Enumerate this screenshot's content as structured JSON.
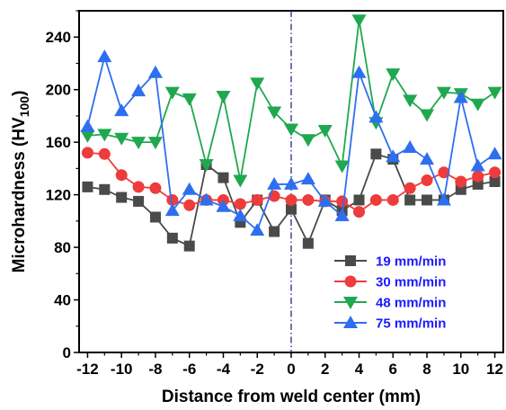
{
  "chart_data": {
    "type": "line",
    "xlabel": "Distance from weld center (mm)",
    "ylabel_main": "Microhardness (HV",
    "ylabel_sub": "100",
    "ylabel_end": ")",
    "xlim": [
      -12.5,
      12.5
    ],
    "ylim": [
      0,
      260
    ],
    "xticks": [
      -12,
      -10,
      -8,
      -6,
      -4,
      -2,
      0,
      2,
      4,
      6,
      8,
      10,
      12
    ],
    "xtick_labels": [
      "-12",
      "-10",
      "-8",
      "-6",
      "-4",
      "-2",
      "0",
      "2",
      "4",
      "6",
      "8",
      "10",
      "12"
    ],
    "yticks": [
      0,
      40,
      80,
      120,
      160,
      200,
      240
    ],
    "ytick_labels": [
      "0",
      "40",
      "80",
      "120",
      "160",
      "200",
      "240"
    ],
    "grid": false,
    "legend_position": "bottom-right",
    "center_line_x": 0,
    "x": [
      -12,
      -11,
      -10,
      -9,
      -8,
      -7,
      -6,
      -5,
      -4,
      -3,
      -2,
      -1,
      0,
      1,
      2,
      3,
      4,
      5,
      6,
      7,
      8,
      9,
      10,
      11,
      12
    ],
    "series": [
      {
        "name": "19 mm/min",
        "color": "#4a4a4a",
        "marker": "square",
        "values": [
          126,
          124,
          118,
          115,
          103,
          87,
          81,
          143,
          133,
          99,
          116,
          92,
          109,
          83,
          116,
          108,
          116,
          151,
          147,
          116,
          116,
          116,
          124,
          128,
          130
        ]
      },
      {
        "name": "30 mm/min",
        "color": "#ee3b3b",
        "marker": "circle",
        "values": [
          152,
          151,
          135,
          126,
          125,
          116,
          112,
          116,
          116,
          113,
          116,
          119,
          116,
          116,
          115,
          115,
          107,
          116,
          116,
          125,
          131,
          137,
          130,
          134,
          137
        ]
      },
      {
        "name": "48 mm/min",
        "color": "#1fa84f",
        "marker": "triangle-down",
        "values": [
          165,
          166,
          163,
          160,
          160,
          198,
          193,
          143,
          195,
          131,
          205,
          183,
          170,
          162,
          169,
          142,
          253,
          175,
          212,
          192,
          181,
          198,
          197,
          189,
          198
        ]
      },
      {
        "name": "75 mm/min",
        "color": "#2e6ff0",
        "marker": "triangle-up",
        "values": [
          172,
          225,
          184,
          199,
          213,
          108,
          124,
          116,
          111,
          104,
          93,
          128,
          128,
          132,
          115,
          104,
          213,
          179,
          149,
          156,
          147,
          116,
          194,
          142,
          151
        ]
      }
    ]
  }
}
